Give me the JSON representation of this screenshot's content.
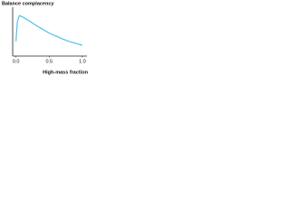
{
  "chart_data": {
    "type": "line",
    "ylabel": "Balance complacency",
    "xlabel": "High-mass fraction",
    "x": [
      0,
      0.02,
      0.05,
      0.1,
      0.2,
      0.3,
      0.4,
      0.5,
      0.6,
      0.7,
      0.8,
      0.9,
      1.0
    ],
    "series": [
      {
        "color": "#4cc3ea",
        "values": [
          0.3,
          0.7,
          0.83,
          0.8,
          0.72,
          0.63,
          0.55,
          0.47,
          0.41,
          0.35,
          0.3,
          0.26,
          0.22
        ]
      }
    ],
    "xlim": [
      -0.05,
      1.07
    ],
    "ylim": [
      0,
      1
    ],
    "xticks": [
      {
        "value": 0,
        "label": "0.0"
      },
      {
        "value": 0.5,
        "label": "0.5"
      },
      {
        "value": 1,
        "label": "1.0"
      }
    ]
  }
}
